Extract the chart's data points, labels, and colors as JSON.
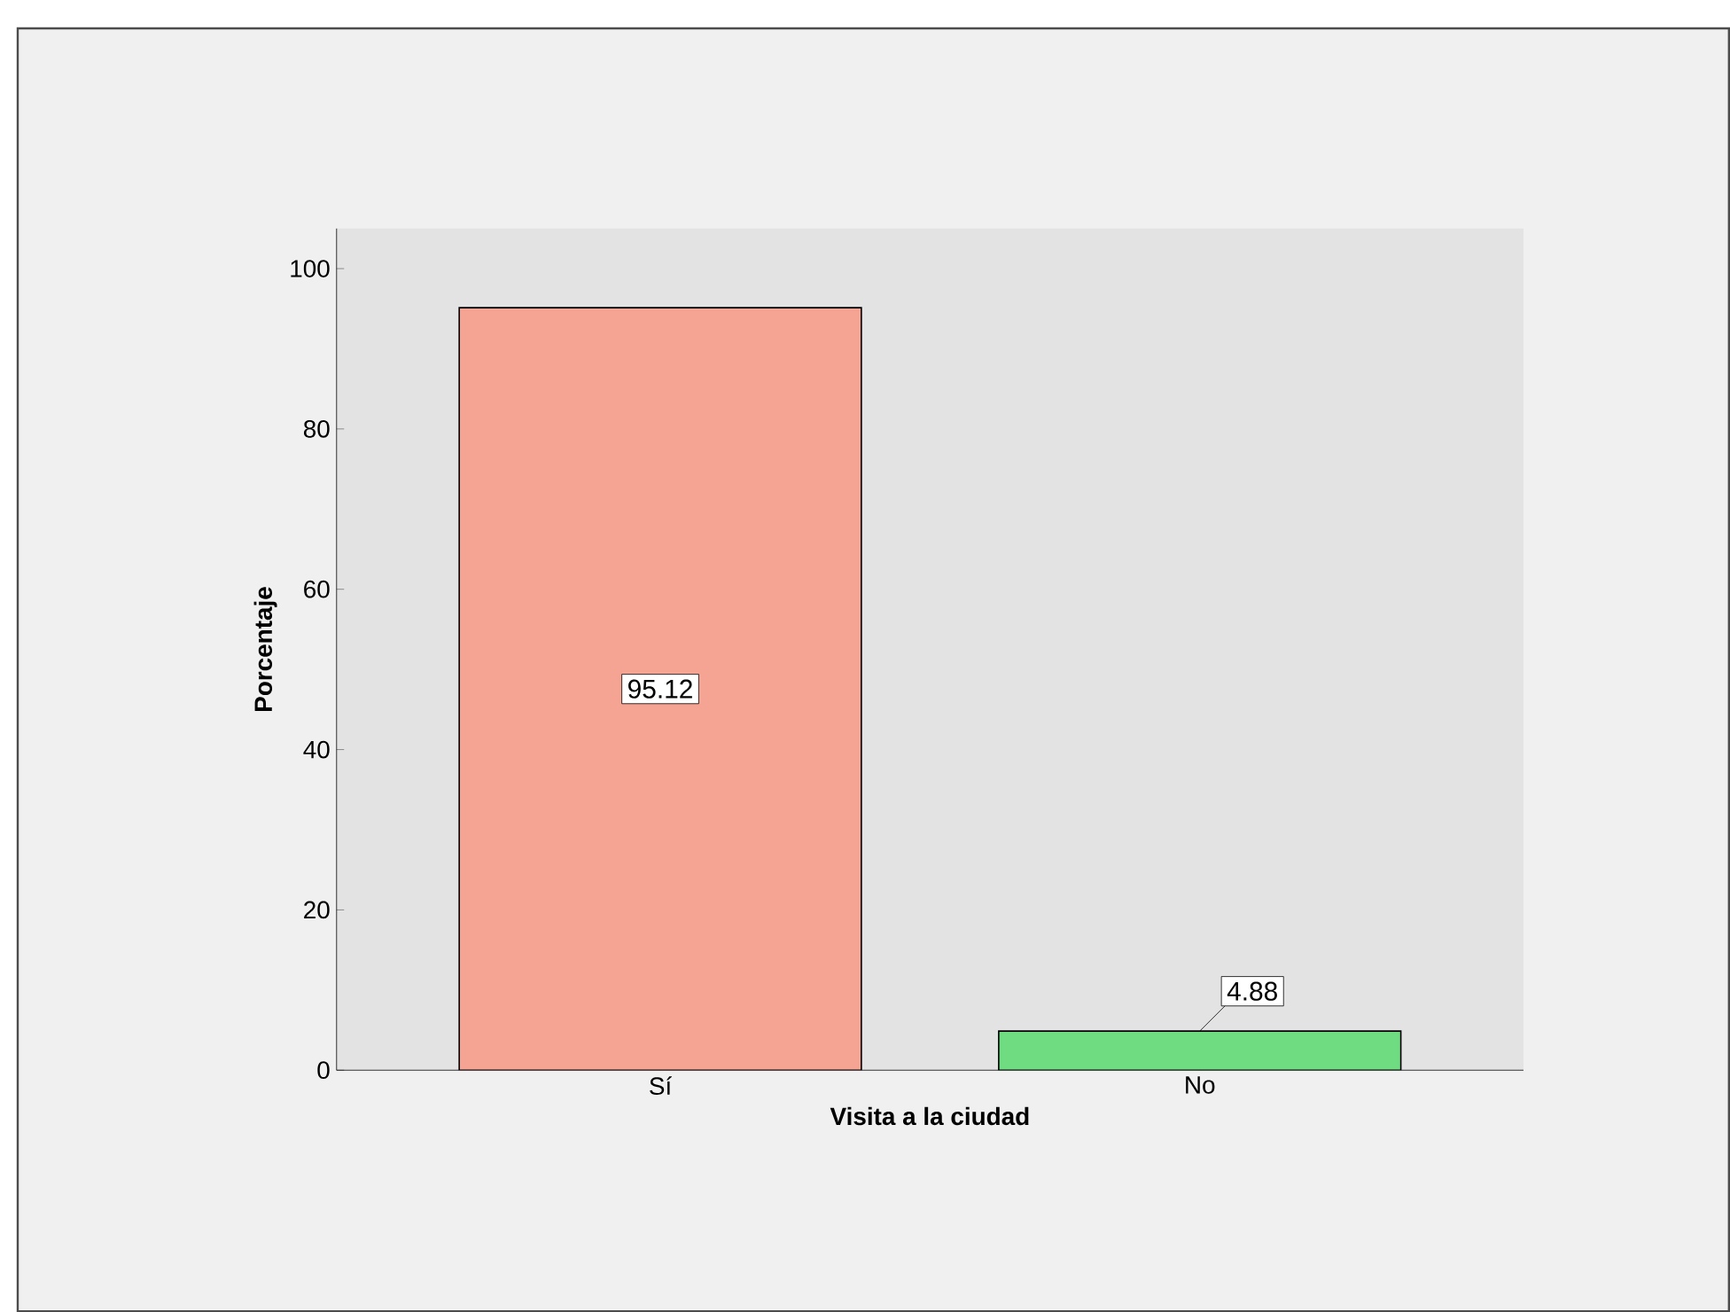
{
  "chart_data": {
    "type": "bar",
    "xlabel": "Visita a la ciudad",
    "ylabel": "Porcentaje",
    "categories": [
      "Sí",
      "No"
    ],
    "values": [
      95.12,
      4.88
    ],
    "colors": [
      "#f5a392",
      "#6fdc82"
    ],
    "ylim": [
      0,
      105
    ],
    "yticks": [
      0,
      20,
      40,
      60,
      80,
      100
    ],
    "data_labels": true,
    "grid": false
  }
}
